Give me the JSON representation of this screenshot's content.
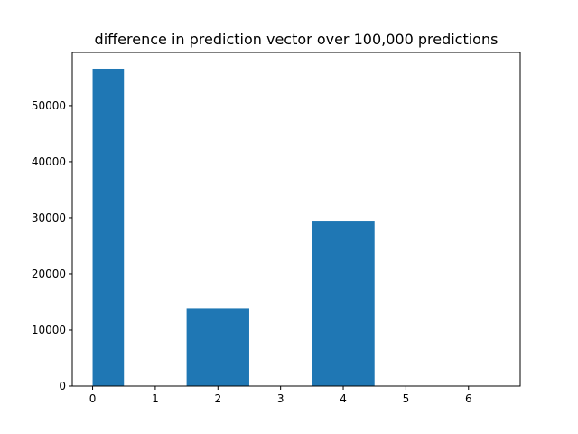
{
  "chart_data": {
    "type": "bar",
    "title": "difference in prediction vector over 100,000 predictions",
    "xlabel": "",
    "ylabel": "",
    "xlim": [
      -0.325,
      6.825
    ],
    "ylim": [
      0,
      59500
    ],
    "xticks": [
      0,
      1,
      2,
      3,
      4,
      5,
      6
    ],
    "yticks": [
      0,
      10000,
      20000,
      30000,
      40000,
      50000
    ],
    "bars": [
      {
        "x0": 0.0,
        "x1": 0.5,
        "value": 56600
      },
      {
        "x0": 1.5,
        "x1": 2.5,
        "value": 13800
      },
      {
        "x0": 3.5,
        "x1": 4.5,
        "value": 29500
      }
    ],
    "bar_color": "#1f77b4",
    "grid": false,
    "legend": "none"
  }
}
